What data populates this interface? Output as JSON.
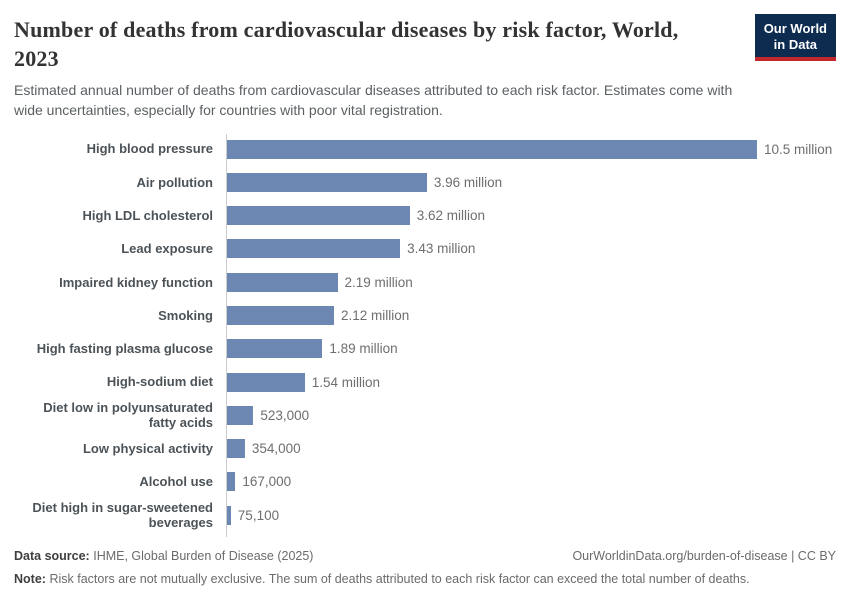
{
  "header": {
    "title": "Number of deaths from cardiovascular diseases by risk factor, World, 2023",
    "title_lines": [
      "Number of deaths from cardiovascular diseases by risk factor, World,",
      "2023"
    ],
    "subtitle": "Estimated annual number of deaths from cardiovascular diseases attributed to each risk factor. Estimates come with wide uncertainties, especially for countries with poor vital registration.",
    "logo": {
      "line1": "Our World",
      "line2": "in Data",
      "bg_color": "#0d2c4f",
      "stripe_color": "#c0282d"
    }
  },
  "chart_data": {
    "type": "bar",
    "orientation": "horizontal",
    "title": "Number of deaths from cardiovascular diseases by risk factor, World, 2023",
    "xlabel": "",
    "ylabel": "",
    "xlim": [
      0,
      10500000
    ],
    "grid": false,
    "legend": "none",
    "bar_color": "#6c87b1",
    "axis_line_color": "#cccccc",
    "categories": [
      "High blood pressure",
      "Air pollution",
      "High LDL cholesterol",
      "Lead exposure",
      "Impaired kidney function",
      "Smoking",
      "High fasting plasma glucose",
      "High-sodium diet",
      "Diet low in polyunsaturated fatty acids",
      "Low physical activity",
      "Alcohol use",
      "Diet high in sugar-sweetened beverages"
    ],
    "values": [
      10500000,
      3960000,
      3620000,
      3430000,
      2190000,
      2120000,
      1890000,
      1540000,
      523000,
      354000,
      167000,
      75100
    ],
    "value_labels": [
      "10.5 million",
      "3.96 million",
      "3.62 million",
      "3.43 million",
      "2.19 million",
      "2.12 million",
      "1.89 million",
      "1.54 million",
      "523,000",
      "354,000",
      "167,000",
      "75,100"
    ]
  },
  "footer": {
    "source_label": "Data source:",
    "source_text": "IHME, Global Burden of Disease (2025)",
    "credit_text": "OurWorldinData.org/burden-of-disease | CC BY",
    "note_label": "Note:",
    "note_text": "Risk factors are not mutually exclusive. The sum of deaths attributed to each risk factor can exceed the total number of deaths."
  }
}
